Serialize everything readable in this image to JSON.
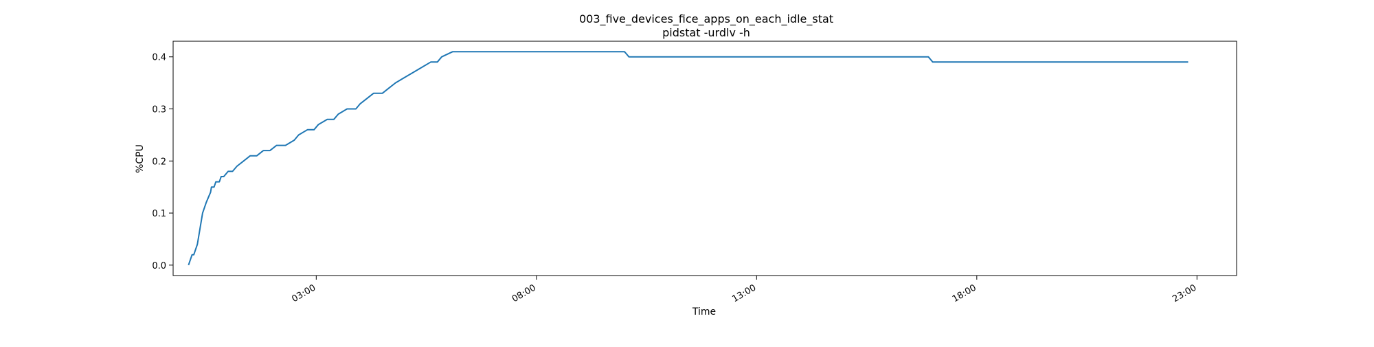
{
  "chart_data": {
    "type": "line",
    "title": "003_five_devices_fice_apps_on_each_idle_stat",
    "subtitle": "pidstat -urdlv -h",
    "xlabel": "Time",
    "ylabel": "%CPU",
    "xlim": [
      "22:45",
      "23:55"
    ],
    "ylim": [
      -0.02,
      0.43
    ],
    "grid": false,
    "legend": "none",
    "x_ticks": [
      "03:00",
      "08:00",
      "13:00",
      "18:00",
      "23:00"
    ],
    "x_tick_hours": [
      3,
      8,
      13,
      18,
      23
    ],
    "x_tick_rotation_deg": 30,
    "y_ticks": [
      0.0,
      0.1,
      0.2,
      0.3,
      0.4
    ],
    "y_tick_labels": [
      "0.0",
      "0.1",
      "0.2",
      "0.3",
      "0.4"
    ],
    "line_color": "#1f77b4",
    "series": [
      {
        "x_hours": [
          0.1,
          0.18,
          0.22,
          0.3,
          0.36,
          0.42,
          0.5,
          0.55,
          0.6,
          0.62,
          0.68,
          0.72,
          0.8,
          0.84,
          0.9,
          1.0,
          1.1,
          1.2,
          1.35,
          1.5,
          1.65,
          1.8,
          1.95,
          2.1,
          2.3,
          2.5,
          2.6,
          2.8,
          2.95,
          3.05,
          3.25,
          3.4,
          3.5,
          3.7,
          3.9,
          4.0,
          4.15,
          4.3,
          4.5,
          4.65,
          4.8,
          5.0,
          5.2,
          5.4,
          5.6,
          5.75,
          5.85,
          6.1,
          6.3,
          10.0,
          10.05,
          10.1,
          16.9,
          16.95,
          17.0,
          22.8
        ],
        "values": [
          0.0,
          0.02,
          0.02,
          0.04,
          0.07,
          0.1,
          0.12,
          0.13,
          0.14,
          0.15,
          0.15,
          0.16,
          0.16,
          0.17,
          0.17,
          0.18,
          0.18,
          0.19,
          0.2,
          0.21,
          0.21,
          0.22,
          0.22,
          0.23,
          0.23,
          0.24,
          0.25,
          0.26,
          0.26,
          0.27,
          0.28,
          0.28,
          0.29,
          0.3,
          0.3,
          0.31,
          0.32,
          0.33,
          0.33,
          0.34,
          0.35,
          0.36,
          0.37,
          0.38,
          0.39,
          0.39,
          0.4,
          0.41,
          0.41,
          0.41,
          0.405,
          0.4,
          0.4,
          0.395,
          0.39,
          0.39
        ]
      }
    ]
  }
}
